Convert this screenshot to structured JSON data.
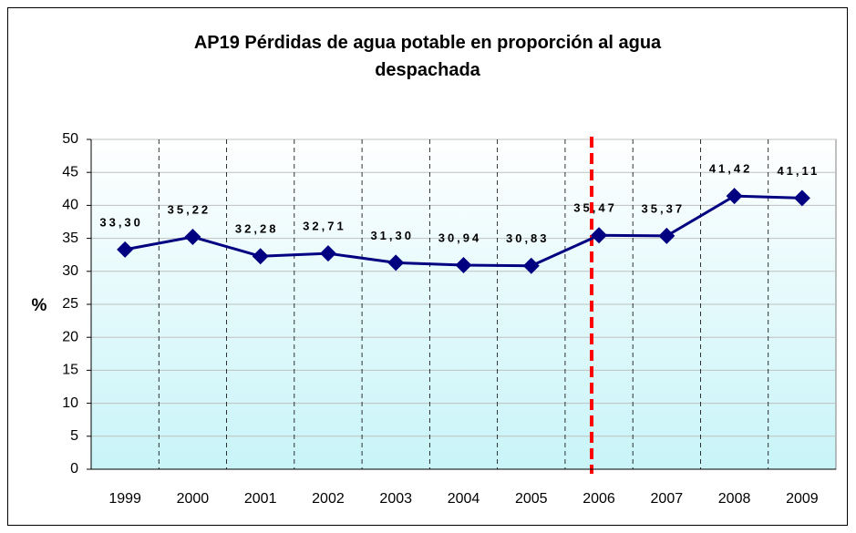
{
  "chart_data": {
    "type": "line",
    "title": "AP19 Pérdidas de agua potable en proporción al agua despachada",
    "y_label": "%",
    "categories": [
      "1999",
      "2000",
      "2001",
      "2002",
      "2003",
      "2004",
      "2005",
      "2006",
      "2007",
      "2008",
      "2009"
    ],
    "series": [
      {
        "name": "AP19",
        "color": "#000080",
        "values": [
          33.3,
          35.22,
          32.28,
          32.71,
          31.3,
          30.94,
          30.83,
          35.47,
          35.37,
          41.42,
          41.11
        ],
        "value_labels": [
          "33,30",
          "35,22",
          "32,28",
          "32,71",
          "31,30",
          "30,94",
          "30,83",
          "35,47",
          "35,37",
          "41,42",
          "41,11"
        ]
      }
    ],
    "ylim": [
      0,
      50
    ],
    "yticks": [
      0,
      5,
      10,
      15,
      20,
      25,
      30,
      35,
      40,
      45,
      50
    ],
    "grid": true
  }
}
